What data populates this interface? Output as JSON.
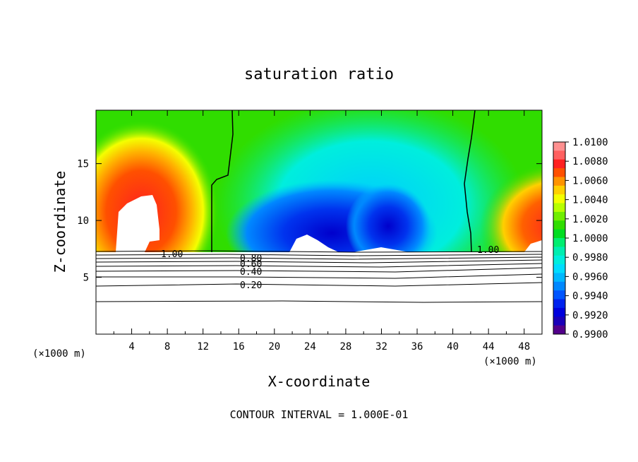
{
  "chart_data": {
    "type": "heatmap",
    "title": "saturation ratio",
    "xlabel": "X-coordinate",
    "ylabel": "Z-coordinate",
    "x_unit_left": "(×1000 m)",
    "x_unit_right": "(×1000 m)",
    "xlim": [
      0,
      50
    ],
    "ylim": [
      0,
      19.7
    ],
    "xticks": [
      4,
      8,
      12,
      16,
      20,
      24,
      28,
      32,
      36,
      40,
      44,
      48
    ],
    "yticks": [
      5,
      10,
      15
    ],
    "footer": "CONTOUR INTERVAL = 1.000E-01",
    "colorbar": {
      "labels": [
        "1.0100",
        "1.0080",
        "1.0060",
        "1.0040",
        "1.0020",
        "1.0000",
        "0.9980",
        "0.9960",
        "0.9940",
        "0.9920",
        "0.9900"
      ],
      "colors": [
        "#ff9090",
        "#ff6060",
        "#ff2020",
        "#ff5000",
        "#ff9400",
        "#ffd000",
        "#f4ff00",
        "#b8ff00",
        "#70ee00",
        "#30dd00",
        "#00dd22",
        "#00ee70",
        "#00eeb0",
        "#00eedd",
        "#00ddff",
        "#00b8ff",
        "#0088ff",
        "#0055ff",
        "#0022ee",
        "#0000dd",
        "#1a00b8",
        "#52008a"
      ]
    },
    "contour_labels": [
      "1.00",
      "1.00",
      "0.80",
      "0.60",
      "0.40",
      "0.20"
    ]
  }
}
